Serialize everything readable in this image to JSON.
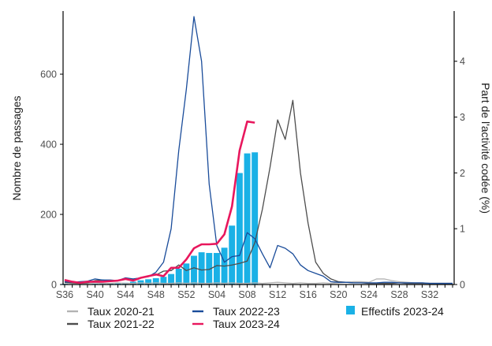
{
  "chart_data": {
    "type": "bar+line",
    "x_labels_shown": [
      "S36",
      "S40",
      "S44",
      "S48",
      "S52",
      "S04",
      "S08",
      "S12",
      "S16",
      "S20",
      "S24",
      "S28",
      "S32"
    ],
    "weeks": [
      "S36",
      "S37",
      "S38",
      "S39",
      "S40",
      "S41",
      "S42",
      "S43",
      "S44",
      "S45",
      "S46",
      "S47",
      "S48",
      "S49",
      "S50",
      "S51",
      "S52",
      "S01",
      "S02",
      "S03",
      "S04",
      "S05",
      "S06",
      "S07",
      "S08",
      "S09",
      "S10",
      "S11",
      "S12",
      "S13",
      "S14",
      "S15",
      "S16",
      "S17",
      "S18",
      "S19",
      "S20",
      "S21",
      "S22",
      "S23",
      "S24",
      "S25",
      "S26",
      "S27",
      "S28",
      "S29",
      "S30",
      "S31",
      "S32",
      "S33",
      "S34",
      "S35"
    ],
    "ylabel_left": "Nombre de passages",
    "ylabel_right": "Part de l'activité codée (%)",
    "ylim_left": [
      0,
      780
    ],
    "ylim_right": [
      0,
      4.9
    ],
    "yticks_left": [
      "0",
      "200",
      "400",
      "600"
    ],
    "yticks_right": [
      "0",
      "1",
      "2",
      "3",
      "4"
    ],
    "bars": {
      "name": "Effectifs 2023-24",
      "color": "#1ab1e6",
      "values": [
        2,
        1,
        1,
        1,
        2,
        2,
        3,
        3,
        5,
        8,
        12,
        15,
        18,
        22,
        30,
        45,
        60,
        82,
        92,
        90,
        90,
        105,
        168,
        318,
        374,
        377
      ]
    },
    "series": [
      {
        "name": "Taux 2020-21",
        "color": "#b3b3b3",
        "values": [
          0.03,
          0.02,
          0.02,
          0.02,
          0.03,
          0.02,
          0.02,
          0.03,
          0.02,
          0.02,
          0.03,
          0.02,
          0.03,
          0.02,
          0.02,
          0.03,
          0.02,
          0.03,
          0.02,
          0.02,
          0.03,
          0.02,
          0.03,
          0.02,
          0.02,
          0.03,
          0.02,
          0.03,
          0.04,
          0.03,
          0.02,
          0.03,
          0.02,
          0.02,
          0.03,
          0.02,
          0.03,
          0.04,
          0.05,
          0.05,
          0.04,
          0.1,
          0.1,
          0.07,
          0.05,
          0.04,
          0.03,
          0.03,
          0.02,
          0.02,
          0.02,
          0.02
        ]
      },
      {
        "name": "Taux 2021-22",
        "color": "#4d4d4d",
        "values": [
          0.04,
          0.03,
          0.02,
          0.03,
          0.07,
          0.08,
          0.06,
          0.07,
          0.1,
          0.08,
          0.12,
          0.15,
          0.17,
          0.24,
          0.25,
          0.35,
          0.25,
          0.3,
          0.26,
          0.27,
          0.34,
          0.33,
          0.35,
          0.38,
          0.42,
          0.75,
          1.35,
          2.1,
          2.95,
          2.6,
          3.3,
          2.0,
          1.1,
          0.4,
          0.2,
          0.1,
          0.05,
          0.04,
          0.03,
          0.03,
          0.02,
          0.02,
          0.02,
          0.02,
          0.03,
          0.02,
          0.02,
          0.02,
          0.02,
          0.02,
          0.02,
          0.02
        ]
      },
      {
        "name": "Taux 2022-23",
        "color": "#1a4c9a",
        "values": [
          0.05,
          0.04,
          0.05,
          0.06,
          0.1,
          0.08,
          0.08,
          0.07,
          0.12,
          0.1,
          0.12,
          0.14,
          0.22,
          0.4,
          1.0,
          2.4,
          3.5,
          4.8,
          4.0,
          1.8,
          0.7,
          0.4,
          0.5,
          0.52,
          0.93,
          0.82,
          0.55,
          0.3,
          0.7,
          0.65,
          0.55,
          0.35,
          0.25,
          0.2,
          0.15,
          0.05,
          0.04,
          0.04,
          0.03,
          0.03,
          0.03,
          0.03,
          0.04,
          0.04,
          0.03,
          0.03,
          0.03,
          0.03,
          0.02,
          0.02,
          0.02,
          0.02
        ]
      },
      {
        "name": "Taux 2023-24",
        "color": "#e8175d",
        "values": [
          0.08,
          0.05,
          0.03,
          0.05,
          0.05,
          0.05,
          0.06,
          0.07,
          0.1,
          0.07,
          0.12,
          0.15,
          0.18,
          0.15,
          0.3,
          0.3,
          0.45,
          0.65,
          0.72,
          0.72,
          0.73,
          0.9,
          1.4,
          2.4,
          2.92,
          2.9
        ]
      }
    ],
    "legend": {
      "col1": [
        "Taux 2020-21",
        "Taux 2021-22"
      ],
      "col2": [
        "Taux 2022-23",
        "Taux 2023-24"
      ],
      "col3": [
        "Effectifs 2023-24"
      ]
    },
    "grid": false
  }
}
